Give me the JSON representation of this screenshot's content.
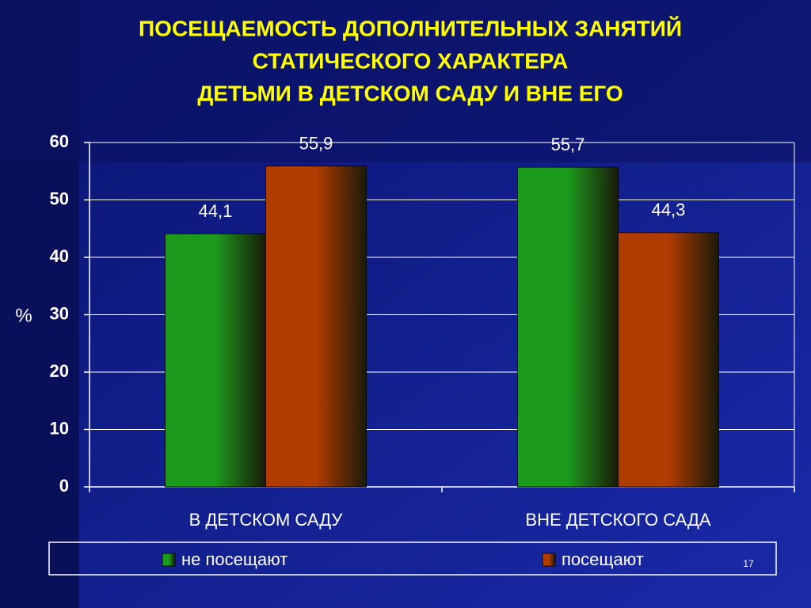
{
  "chart_data": {
    "type": "bar",
    "title": [
      "ПОСЕЩАЕМОСТЬ ДОПОЛНИТЕЛЬНЫХ ЗАНЯТИЙ",
      "СТАТИЧЕСКОГО ХАРАКТЕРА",
      "ДЕТЬМИ В ДЕТСКОМ САДУ И ВНЕ ЕГО"
    ],
    "y_label": "%",
    "categories": [
      "В ДЕТСКОМ САДУ",
      "ВНЕ ДЕТСКОГО САДА"
    ],
    "series": [
      {
        "name": "не посещают",
        "color": "#1c9a1c",
        "values": [
          44.1,
          55.7
        ],
        "value_labels": [
          "44,1",
          "55,7"
        ]
      },
      {
        "name": "посещают",
        "color": "#b03c00",
        "values": [
          55.9,
          44.3
        ],
        "value_labels": [
          "55,9",
          "44,3"
        ]
      }
    ],
    "ylim": [
      0,
      60
    ],
    "yticks": [
      0,
      10,
      20,
      30,
      40,
      50,
      60
    ],
    "grid": true
  },
  "page_number": "17"
}
